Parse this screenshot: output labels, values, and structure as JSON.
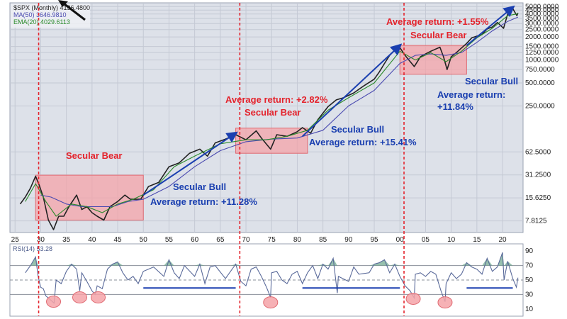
{
  "chart_data": [
    {
      "type": "line",
      "scale": "log",
      "ylim": [
        5.5,
        5600
      ],
      "xlim": [
        1924,
        2024
      ],
      "grid": true,
      "legend_position": "top-left",
      "legend": [
        {
          "label": "$SPX (Monthly) 4136.4800",
          "color": "#222222"
        },
        {
          "label": "MA(50) 3646.9810",
          "color": "#4a4ab0"
        },
        {
          "label": "EMA(20) 4029.6113",
          "color": "#2a8a2a"
        }
      ],
      "ytick_labels": [
        "7.8125",
        "15.6250",
        "31.2500",
        "62.5000",
        "250.0000",
        "500.0000",
        "750.0000",
        "1000.0000",
        "1250.0000",
        "1500.0000",
        "2000.0000",
        "2500.0000",
        "3000.0000",
        "3500.0000",
        "4000.0000",
        "4500.0000",
        "5000.0000"
      ],
      "ytick_values": [
        7.8125,
        15.625,
        31.25,
        62.5,
        250,
        500,
        750,
        1000,
        1250,
        1500,
        2000,
        2500,
        3000,
        3500,
        4000,
        4500,
        5000
      ],
      "xtick_labels": [
        "25",
        "30",
        "35",
        "40",
        "45",
        "50",
        "55",
        "60",
        "65",
        "70",
        "75",
        "80",
        "85",
        "90",
        "95",
        "00",
        "05",
        "10",
        "15",
        "20"
      ],
      "xtick_values": [
        1925,
        1930,
        1935,
        1940,
        1945,
        1950,
        1955,
        1960,
        1965,
        1970,
        1975,
        1980,
        1985,
        1990,
        1995,
        2000,
        2005,
        2010,
        2015,
        2020
      ],
      "series": [
        {
          "name": "$SPX (Monthly)",
          "color": "#222222",
          "x": [
            1926,
            1927,
            1928,
            1929,
            1929.7,
            1930.5,
            1931.5,
            1932.5,
            1933.5,
            1934.5,
            1935.5,
            1937,
            1938,
            1939,
            1940,
            1941,
            1942.3,
            1943.5,
            1945,
            1946.4,
            1947.5,
            1949.5,
            1951,
            1953,
            1955,
            1957,
            1959,
            1961,
            1962.5,
            1964,
            1966,
            1968,
            1970,
            1972,
            1973,
            1974.8,
            1976,
            1978,
            1980,
            1981,
            1982.6,
            1984,
            1986,
            1987.6,
            1989,
            1991,
            1993,
            1995,
            1996,
            1997,
            1998,
            1999,
            2000,
            2001,
            2002.8,
            2004,
            2005,
            2006,
            2007.8,
            2008.5,
            2009.2,
            2010,
            2011,
            2013,
            2014,
            2015,
            2016,
            2017,
            2018,
            2019,
            2020.2,
            2021,
            2022,
            2022.8,
            2023
          ],
          "y": [
            13,
            16,
            21,
            30,
            23,
            16,
            8,
            6,
            9,
            9,
            12,
            17,
            11,
            12,
            10,
            9,
            8,
            12,
            14,
            17,
            15,
            15,
            22,
            25,
            40,
            45,
            60,
            68,
            55,
            82,
            92,
            105,
            90,
            118,
            95,
            68,
            105,
            100,
            115,
            130,
            110,
            165,
            245,
            300,
            320,
            370,
            460,
            560,
            700,
            900,
            1150,
            1350,
            1450,
            1150,
            820,
            1100,
            1200,
            1300,
            1470,
            1100,
            750,
            1100,
            1250,
            1650,
            1950,
            2050,
            2150,
            2550,
            2700,
            3100,
            2600,
            4000,
            4700,
            3800,
            4136
          ]
        },
        {
          "name": "MA(50)",
          "color": "#4a4ab0",
          "x": [
            1930,
            1932,
            1935,
            1938,
            1941,
            1944,
            1947,
            1950,
            1955,
            1960,
            1965,
            1970,
            1975,
            1980,
            1985,
            1990,
            1995,
            2000,
            2003,
            2006,
            2009,
            2012,
            2015,
            2018,
            2021,
            2023
          ],
          "y": [
            17,
            16,
            13,
            12,
            12,
            12,
            14,
            15,
            22,
            40,
            65,
            85,
            92,
            95,
            120,
            250,
            400,
            900,
            1150,
            1200,
            1150,
            1250,
            1700,
            2400,
            3200,
            3646
          ]
        },
        {
          "name": "EMA(20)",
          "color": "#2a8a2a",
          "x": [
            1927,
            1929,
            1931,
            1933,
            1936,
            1939,
            1942,
            1945,
            1948,
            1952,
            1956,
            1960,
            1965,
            1970,
            1974,
            1978,
            1982,
            1986,
            1990,
            1995,
            2000,
            2003,
            2006,
            2009,
            2012,
            2015,
            2018,
            2021,
            2023
          ],
          "y": [
            14,
            24,
            14,
            9,
            13,
            12,
            10,
            13,
            15,
            20,
            40,
            55,
            80,
            90,
            90,
            100,
            120,
            220,
            320,
            500,
            1300,
            1000,
            1250,
            950,
            1300,
            1950,
            2600,
            3800,
            4029
          ]
        }
      ],
      "zones": [
        {
          "label": "Secular Bear",
          "type": "bear",
          "x": [
            1929,
            1950
          ],
          "y": [
            8,
            31
          ]
        },
        {
          "label": "Secular Bear",
          "type": "bear",
          "x": [
            1968,
            1982
          ],
          "y": [
            60,
            128
          ]
        },
        {
          "label": "Secular Bear",
          "type": "bear",
          "x": [
            2000,
            2013
          ],
          "y": [
            650,
            1550
          ]
        }
      ],
      "bull_arrows": [
        {
          "x": [
            1950,
            1968
          ],
          "y": [
            17,
            110
          ]
        },
        {
          "x": [
            1981,
            2000
          ],
          "y": [
            100,
            1550
          ]
        },
        {
          "x": [
            2013,
            2022
          ],
          "y": [
            1550,
            4900
          ]
        }
      ],
      "cycle_lines_x": [
        1929.6,
        1968.8,
        2000.8
      ],
      "annotations": [
        {
          "text": "Secular Bear",
          "color": "red"
        },
        {
          "text": "Secular Bull",
          "color": "blue"
        },
        {
          "text": "Average return:  +11.28%",
          "color": "blue"
        },
        {
          "text": "Average return:  +2.82%",
          "color": "red"
        },
        {
          "text": "Secular Bear",
          "color": "red"
        },
        {
          "text": "Secular Bull",
          "color": "blue"
        },
        {
          "text": "Average return:  +15.41%",
          "color": "blue"
        },
        {
          "text": "Average return:  +1.55%",
          "color": "red"
        },
        {
          "text": "Secular Bear",
          "color": "red"
        },
        {
          "text": "Secular Bull",
          "color": "blue"
        },
        {
          "text": "Average return:",
          "color": "blue"
        },
        {
          "text": "+11.84%",
          "color": "blue"
        }
      ]
    },
    {
      "type": "line",
      "ylim": [
        0,
        100
      ],
      "legend": [
        {
          "label": "RSI(14) 53.28",
          "color": "#4a5a8a"
        }
      ],
      "ytick_labels": [
        "90",
        "70",
        "50",
        "30",
        "10"
      ],
      "ytick_values": [
        90,
        70,
        50,
        30,
        10
      ],
      "reference_levels": [
        70,
        50,
        30
      ],
      "series": [
        {
          "name": "RSI(14)",
          "color": "#5a6a9a",
          "x": [
            1927,
            1928,
            1929,
            1929.5,
            1930,
            1930.5,
            1931,
            1932,
            1932.6,
            1933,
            1934,
            1935,
            1936,
            1937,
            1937.6,
            1938,
            1939,
            1940,
            1940.6,
            1941,
            1942,
            1943,
            1944,
            1945,
            1946,
            1947,
            1948,
            1949,
            1950,
            1952,
            1954,
            1955,
            1956,
            1957,
            1958,
            1960,
            1961,
            1962,
            1963,
            1964,
            1966,
            1967,
            1968,
            1969,
            1970,
            1971,
            1972,
            1973,
            1974,
            1974.8,
            1975,
            1976,
            1977,
            1978,
            1979,
            1980,
            1981,
            1982,
            1983,
            1984,
            1985,
            1986,
            1987,
            1987.8,
            1988,
            1990,
            1991,
            1992,
            1994,
            1995,
            1996,
            1997,
            1998,
            1999,
            2000,
            2001,
            2002,
            2002.8,
            2003,
            2004,
            2005,
            2006,
            2007,
            2008,
            2008.8,
            2009,
            2010,
            2011,
            2012,
            2013,
            2014,
            2015,
            2016,
            2017,
            2018,
            2019,
            2020,
            2020.3,
            2021,
            2022,
            2022.7,
            2023
          ],
          "y": [
            60,
            70,
            82,
            55,
            40,
            38,
            28,
            22,
            18,
            50,
            45,
            62,
            72,
            65,
            35,
            60,
            48,
            35,
            30,
            42,
            38,
            65,
            72,
            75,
            60,
            50,
            55,
            45,
            62,
            68,
            55,
            78,
            60,
            52,
            70,
            55,
            72,
            45,
            68,
            70,
            52,
            62,
            72,
            48,
            42,
            65,
            68,
            55,
            40,
            26,
            60,
            62,
            50,
            45,
            58,
            62,
            45,
            60,
            70,
            52,
            72,
            65,
            80,
            32,
            55,
            48,
            68,
            58,
            60,
            72,
            74,
            78,
            60,
            72,
            55,
            42,
            35,
            25,
            58,
            60,
            55,
            62,
            58,
            35,
            20,
            45,
            60,
            52,
            58,
            74,
            68,
            65,
            58,
            80,
            62,
            68,
            88,
            50,
            76,
            52,
            40,
            53.28
          ]
        }
      ],
      "support_segments": [
        {
          "x": [
            1950,
            1968
          ],
          "y": [
            39,
            39
          ]
        },
        {
          "x": [
            1981,
            2000
          ],
          "y": [
            39,
            39
          ]
        },
        {
          "x": [
            2013,
            2022
          ],
          "y": [
            39,
            39
          ]
        }
      ],
      "oversold_markers": [
        {
          "x": 1932.5,
          "y": 22
        },
        {
          "x": 1937.6,
          "y": 28
        },
        {
          "x": 1941.2,
          "y": 28
        },
        {
          "x": 1974.8,
          "y": 21
        },
        {
          "x": 2002.6,
          "y": 26
        },
        {
          "x": 2008.8,
          "y": 21
        }
      ]
    }
  ]
}
